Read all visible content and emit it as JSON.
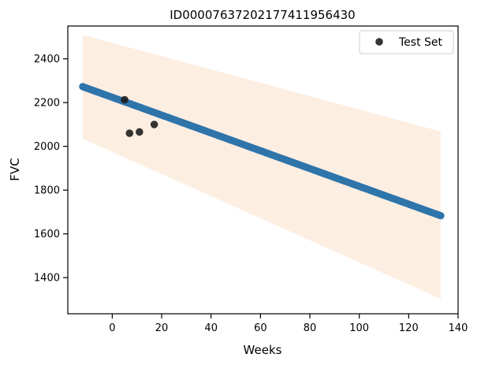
{
  "chart_data": {
    "type": "scatter",
    "title": "ID00007637202177411956430",
    "xlabel": "Weeks",
    "ylabel": "FVC",
    "xlim": [
      -18,
      140
    ],
    "ylim": [
      1235,
      2550
    ],
    "xticks": [
      0,
      20,
      40,
      60,
      80,
      100,
      120,
      140
    ],
    "yticks": [
      1400,
      1600,
      1800,
      2000,
      2200,
      2400
    ],
    "grid": false,
    "legend_position": "top-right",
    "prediction": {
      "x_start": -12,
      "x_end": 133,
      "y_start": 2273,
      "y_end": 1683,
      "color": "#2e75aa"
    },
    "confidence_band": {
      "upper_start": 2510,
      "upper_end": 2068,
      "lower_start": 2035,
      "lower_end": 1303,
      "color": "#fdeee2"
    },
    "series": [
      {
        "name": "Test Set",
        "color": "#1e1e1e",
        "points": [
          {
            "x": 5,
            "y": 2213
          },
          {
            "x": 7,
            "y": 2060
          },
          {
            "x": 11,
            "y": 2066
          },
          {
            "x": 17,
            "y": 2100
          }
        ]
      }
    ]
  }
}
